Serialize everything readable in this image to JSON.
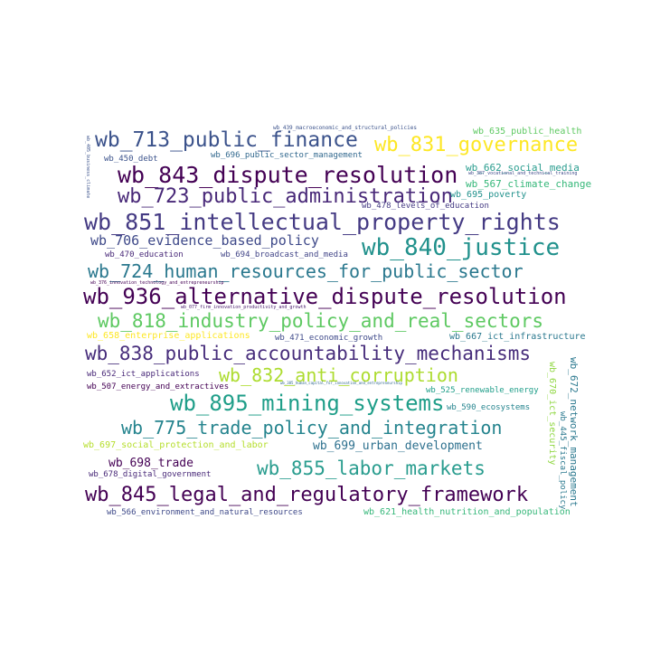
{
  "words": [
    {
      "text": "wb_713_public_finance",
      "color": "#3b528b"
    },
    {
      "text": "wb_831_governance",
      "color": "#fde725"
    },
    {
      "text": "wb_843_dispute_resolution",
      "color": "#440154"
    },
    {
      "text": "wb_723_public_administration",
      "color": "#482878"
    },
    {
      "text": "wb_851_intellectual_property_rights",
      "color": "#443a83"
    },
    {
      "text": "wb_840_justice",
      "color": "#21918c"
    },
    {
      "text": "wb_706_evidence_based_policy",
      "color": "#3e4989"
    },
    {
      "text": "wb_724_human_resources_for_public_sector",
      "color": "#2a788e"
    },
    {
      "text": "wb_936_alternative_dispute_resolution",
      "color": "#440154"
    },
    {
      "text": "wb_818_industry_policy_and_real_sectors",
      "color": "#5ec962"
    },
    {
      "text": "wb_838_public_accountability_mechanisms",
      "color": "#472d7b"
    },
    {
      "text": "wb_832_anti_corruption",
      "color": "#addc30"
    },
    {
      "text": "wb_895_mining_systems",
      "color": "#1f9e89"
    },
    {
      "text": "wb_775_trade_policy_and_integration",
      "color": "#25848e"
    },
    {
      "text": "wb_855_labor_markets",
      "color": "#2a9d8f"
    },
    {
      "text": "wb_845_legal_and_regulatory_framework",
      "color": "#440154"
    },
    {
      "text": "wb_635_public_health",
      "color": "#5ec962"
    },
    {
      "text": "wb_696_public_sector_management",
      "color": "#31688e"
    },
    {
      "text": "wb_450_debt",
      "color": "#3b528b"
    },
    {
      "text": "wb_662_social_media",
      "color": "#2a9d8f"
    },
    {
      "text": "wb_567_climate_change",
      "color": "#35b779"
    },
    {
      "text": "wb_695_poverty",
      "color": "#21918c"
    },
    {
      "text": "wb_478_levels_of_education",
      "color": "#443a83"
    },
    {
      "text": "wb_470_education",
      "color": "#482878"
    },
    {
      "text": "wb_694_broadcast_and_media",
      "color": "#414487"
    },
    {
      "text": "wb_658_enterprise_applications",
      "color": "#fde725"
    },
    {
      "text": "wb_471_economic_growth",
      "color": "#3e4989"
    },
    {
      "text": "wb_667_ict_infrastructure",
      "color": "#2a788e"
    },
    {
      "text": "wb_652_ict_applications",
      "color": "#482878"
    },
    {
      "text": "wb_507_energy_and_extractives",
      "color": "#440154"
    },
    {
      "text": "wb_525_renewable_energy",
      "color": "#1f9e89"
    },
    {
      "text": "wb_590_ecosystems",
      "color": "#25848e"
    },
    {
      "text": "wb_697_social_protection_and_labor",
      "color": "#b5de2b"
    },
    {
      "text": "wb_699_urban_development",
      "color": "#2d708e"
    },
    {
      "text": "wb_698_trade",
      "color": "#440154"
    },
    {
      "text": "wb_678_digital_government",
      "color": "#482878"
    },
    {
      "text": "wb_566_environment_and_natural_resources",
      "color": "#3e4989"
    },
    {
      "text": "wb_621_health_nutrition_and_population",
      "color": "#35b779"
    },
    {
      "text": "wb_439_macroeconomic_and_structural_policies",
      "color": "#3b528b"
    },
    {
      "text": "wb_385_human_capital_for_innovation_and_entrepreneurship",
      "color": "#31688e"
    },
    {
      "text": "wb_387_vocational_and_technical_training",
      "color": "#3e4989"
    },
    {
      "text": "wb_376_innovation_technology_and_entrepreneurship",
      "color": "#440154"
    },
    {
      "text": "wb_077_firm_innovation_productivity_and_growth",
      "color": "#481a6c"
    },
    {
      "text": "wb_445_fiscal_policy",
      "color": "#2a788e"
    },
    {
      "text": "wb_672_network_management",
      "color": "#2a788e"
    },
    {
      "text": "wb_670_ict_security",
      "color": "#90d743"
    },
    {
      "text": "wb_405_business_climate",
      "color": "#3b528b"
    }
  ]
}
